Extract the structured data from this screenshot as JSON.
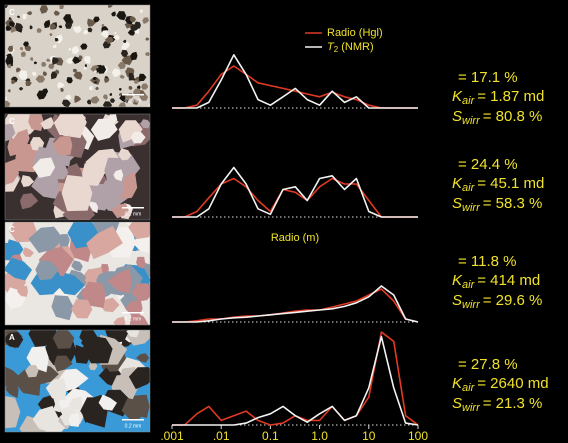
{
  "micrographs": [
    {
      "letter": "C",
      "scale": "0.2 mm"
    },
    {
      "letter": "C",
      "scale": "0.2 mm"
    },
    {
      "letter": "C",
      "scale": "0.2 mm"
    },
    {
      "letter": "A",
      "scale": "0.2 mm"
    }
  ],
  "chart_data": [
    {
      "type": "line",
      "xlog": true,
      "xlim": [
        0.001,
        100
      ],
      "ylim": [
        0,
        1
      ],
      "x": [
        0.001,
        0.0018,
        0.0032,
        0.0056,
        0.01,
        0.018,
        0.032,
        0.056,
        0.1,
        0.18,
        0.32,
        0.56,
        1,
        1.8,
        3.2,
        5.6,
        10,
        18,
        32,
        56,
        100
      ],
      "series": [
        {
          "name": "Radio (Hgl)",
          "color": "#e03a22",
          "values": [
            0,
            0,
            0.05,
            0.3,
            0.6,
            0.75,
            0.6,
            0.45,
            0.4,
            0.35,
            0.3,
            0.25,
            0.2,
            0.28,
            0.2,
            0.15,
            0.05,
            0,
            0,
            0,
            0
          ]
        },
        {
          "name": "T",
          "name_sub": "2",
          "name_rest": " (NMR)",
          "color": "#f2f2f2",
          "values": [
            0,
            0,
            0,
            0.1,
            0.5,
            0.95,
            0.6,
            0.15,
            0.05,
            0.2,
            0.35,
            0.15,
            0.05,
            0.3,
            0.1,
            0.2,
            0,
            0,
            0,
            0,
            0
          ]
        }
      ],
      "annotations": {
        "porosity": "= 17.1 %",
        "k": "K",
        "k_sub": "air",
        "k_value": "= 1.87 md",
        "s": "S",
        "s_sub": "wirr",
        "s_value": "= 80.8 %"
      }
    },
    {
      "type": "line",
      "xlog": true,
      "xlim": [
        0.001,
        100
      ],
      "ylim": [
        0,
        1
      ],
      "xlabel": "Radio (m)",
      "x": [
        0.001,
        0.0018,
        0.0032,
        0.0056,
        0.01,
        0.018,
        0.032,
        0.056,
        0.1,
        0.18,
        0.32,
        0.56,
        1,
        1.8,
        3.2,
        5.6,
        10,
        18,
        32,
        56,
        100
      ],
      "series": [
        {
          "color": "#e03a22",
          "values": [
            0,
            0,
            0.1,
            0.35,
            0.6,
            0.7,
            0.55,
            0.3,
            0.1,
            0.5,
            0.45,
            0.3,
            0.55,
            0.7,
            0.6,
            0.6,
            0.3,
            0,
            0,
            0,
            0
          ]
        },
        {
          "color": "#f2f2f2",
          "values": [
            0,
            0,
            0,
            0.15,
            0.6,
            0.9,
            0.6,
            0.15,
            0.05,
            0.5,
            0.55,
            0.3,
            0.7,
            0.75,
            0.5,
            0.7,
            0.1,
            0,
            0,
            0,
            0
          ]
        }
      ],
      "annotations": {
        "porosity": "= 24.4 %",
        "k": "K",
        "k_sub": "air",
        "k_value": "= 45.1 md",
        "s": "S",
        "s_sub": "wirr",
        "s_value": "= 58.3 %"
      }
    },
    {
      "type": "line",
      "xlog": true,
      "xlim": [
        0.001,
        100
      ],
      "ylim": [
        0,
        1
      ],
      "x": [
        0.001,
        0.0018,
        0.0032,
        0.0056,
        0.01,
        0.018,
        0.032,
        0.056,
        0.1,
        0.18,
        0.32,
        0.56,
        1,
        1.8,
        3.2,
        5.6,
        10,
        18,
        32,
        56,
        100
      ],
      "series": [
        {
          "color": "#e03a22",
          "values": [
            0,
            0,
            0.02,
            0.05,
            0.05,
            0.08,
            0.1,
            0.1,
            0.12,
            0.15,
            0.18,
            0.2,
            0.2,
            0.25,
            0.3,
            0.35,
            0.45,
            0.55,
            0.35,
            0.05,
            0
          ]
        },
        {
          "color": "#f2f2f2",
          "values": [
            0,
            0,
            0,
            0.02,
            0.05,
            0.07,
            0.08,
            0.1,
            0.12,
            0.14,
            0.16,
            0.18,
            0.2,
            0.22,
            0.26,
            0.32,
            0.42,
            0.6,
            0.45,
            0.05,
            0
          ]
        }
      ],
      "annotations": {
        "porosity": "= 11.8 %",
        "k": "K",
        "k_sub": "air",
        "k_value": "= 414 md",
        "s": "S",
        "s_sub": "wirr",
        "s_value": "= 29.6 %"
      }
    },
    {
      "type": "line",
      "xlog": true,
      "xlim": [
        0.001,
        100
      ],
      "ylim": [
        0,
        1
      ],
      "xticks": [
        {
          "value": 0.001,
          "label": ".001"
        },
        {
          "value": 0.01,
          "label": ".01"
        },
        0.1,
        {
          "value": 1,
          "label": "1.0"
        },
        10,
        100
      ],
      "x": [
        0.001,
        0.0018,
        0.0032,
        0.0056,
        0.01,
        0.018,
        0.032,
        0.056,
        0.1,
        0.18,
        0.32,
        0.56,
        1,
        1.8,
        3.2,
        5.6,
        10,
        18,
        32,
        56,
        100
      ],
      "series": [
        {
          "color": "#e03a22",
          "values": [
            0,
            0,
            0.12,
            0.2,
            0.05,
            0.1,
            0.15,
            0.05,
            0,
            0.02,
            0.1,
            0.05,
            0.05,
            0.2,
            0.05,
            0.1,
            0.3,
            1.0,
            0.9,
            0.1,
            0
          ]
        },
        {
          "color": "#f2f2f2",
          "values": [
            0,
            0,
            0,
            0,
            0,
            0,
            0.02,
            0.08,
            0.12,
            0.2,
            0.1,
            0.03,
            0.12,
            0.2,
            0.05,
            0.1,
            0.4,
            0.95,
            0.4,
            0.02,
            0
          ]
        }
      ],
      "annotations": {
        "porosity": "= 27.8 %",
        "k": "K",
        "k_sub": "air",
        "k_value": "= 2640 md",
        "s": "S",
        "s_sub": "wirr",
        "s_value": "= 21.3 %"
      }
    }
  ]
}
